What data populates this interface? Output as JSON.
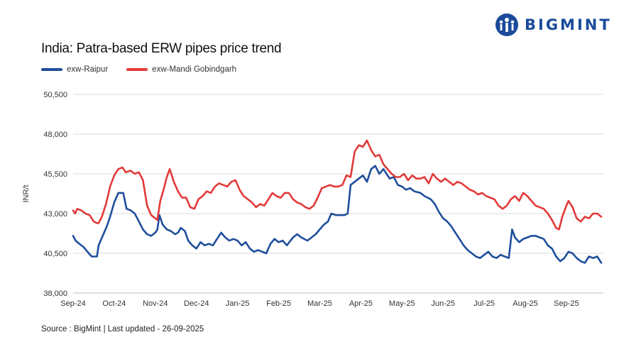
{
  "brand": {
    "name": "BIGMINT",
    "color": "#1b4b9a"
  },
  "chart_data": {
    "type": "line",
    "title": "India: Patra-based ERW pipes price trend",
    "ylabel": "INR/t",
    "xlabel": "",
    "ylim": [
      38000,
      50500
    ],
    "yticks": [
      38000,
      40500,
      43000,
      45500,
      48000,
      50500
    ],
    "ytick_labels": [
      "38,000",
      "40,500",
      "43,000",
      "45,500",
      "48,000",
      "50,500"
    ],
    "xlim": [
      0,
      12.9
    ],
    "xticks": [
      0,
      1,
      2,
      3,
      4,
      5,
      6,
      7,
      8,
      9,
      10,
      11,
      12
    ],
    "xtick_labels": [
      "Sep-24",
      "Oct-24",
      "Nov-24",
      "Dec-24",
      "Jan-25",
      "Feb-25",
      "Mar-25",
      "Apr-25",
      "May-25",
      "Jun-25",
      "Jul-25",
      "Aug-25",
      "Sep-25"
    ],
    "grid": "horizontal",
    "legend_position": "top-left",
    "series": [
      {
        "name": "exw-Raipur",
        "color": "#1f4e9c",
        "points": [
          [
            0,
            41600
          ],
          [
            0.06,
            41300
          ],
          [
            0.15,
            41100
          ],
          [
            0.25,
            40900
          ],
          [
            0.35,
            40600
          ],
          [
            0.45,
            40300
          ],
          [
            0.58,
            40300
          ],
          [
            0.62,
            41000
          ],
          [
            0.72,
            41600
          ],
          [
            0.82,
            42200
          ],
          [
            0.9,
            42800
          ],
          [
            1.0,
            43700
          ],
          [
            1.1,
            44300
          ],
          [
            1.22,
            44300
          ],
          [
            1.3,
            43300
          ],
          [
            1.4,
            43200
          ],
          [
            1.5,
            43000
          ],
          [
            1.6,
            42500
          ],
          [
            1.7,
            42000
          ],
          [
            1.8,
            41700
          ],
          [
            1.9,
            41600
          ],
          [
            2.0,
            41800
          ],
          [
            2.05,
            42000
          ],
          [
            2.1,
            42900
          ],
          [
            2.18,
            42300
          ],
          [
            2.28,
            42000
          ],
          [
            2.38,
            41900
          ],
          [
            2.48,
            41700
          ],
          [
            2.55,
            41800
          ],
          [
            2.62,
            42100
          ],
          [
            2.72,
            41900
          ],
          [
            2.8,
            41300
          ],
          [
            2.9,
            41000
          ],
          [
            3.0,
            40800
          ],
          [
            3.1,
            41200
          ],
          [
            3.2,
            41000
          ],
          [
            3.3,
            41100
          ],
          [
            3.4,
            41000
          ],
          [
            3.5,
            41400
          ],
          [
            3.6,
            41800
          ],
          [
            3.7,
            41500
          ],
          [
            3.8,
            41300
          ],
          [
            3.9,
            41400
          ],
          [
            4.0,
            41300
          ],
          [
            4.1,
            41000
          ],
          [
            4.2,
            41200
          ],
          [
            4.3,
            40800
          ],
          [
            4.4,
            40600
          ],
          [
            4.5,
            40700
          ],
          [
            4.6,
            40600
          ],
          [
            4.7,
            40500
          ],
          [
            4.8,
            41100
          ],
          [
            4.9,
            41400
          ],
          [
            5.0,
            41200
          ],
          [
            5.1,
            41300
          ],
          [
            5.2,
            41000
          ],
          [
            5.35,
            41500
          ],
          [
            5.45,
            41700
          ],
          [
            5.55,
            41500
          ],
          [
            5.7,
            41300
          ],
          [
            5.8,
            41500
          ],
          [
            5.9,
            41700
          ],
          [
            6.0,
            42000
          ],
          [
            6.1,
            42300
          ],
          [
            6.2,
            42500
          ],
          [
            6.28,
            43000
          ],
          [
            6.4,
            42900
          ],
          [
            6.5,
            42900
          ],
          [
            6.6,
            42900
          ],
          [
            6.68,
            43000
          ],
          [
            6.75,
            44800
          ],
          [
            6.85,
            45000
          ],
          [
            6.95,
            45200
          ],
          [
            7.05,
            45400
          ],
          [
            7.15,
            45000
          ],
          [
            7.25,
            45800
          ],
          [
            7.35,
            46000
          ],
          [
            7.45,
            45500
          ],
          [
            7.55,
            45800
          ],
          [
            7.6,
            45600
          ],
          [
            7.7,
            45200
          ],
          [
            7.8,
            45300
          ],
          [
            7.9,
            44800
          ],
          [
            8.0,
            44700
          ],
          [
            8.1,
            44500
          ],
          [
            8.2,
            44600
          ],
          [
            8.3,
            44400
          ],
          [
            8.45,
            44300
          ],
          [
            8.55,
            44100
          ],
          [
            8.7,
            43900
          ],
          [
            8.8,
            43600
          ],
          [
            8.9,
            43100
          ],
          [
            9.0,
            42700
          ],
          [
            9.1,
            42500
          ],
          [
            9.2,
            42200
          ],
          [
            9.3,
            41800
          ],
          [
            9.4,
            41400
          ],
          [
            9.5,
            41000
          ],
          [
            9.6,
            40700
          ],
          [
            9.7,
            40500
          ],
          [
            9.8,
            40300
          ],
          [
            9.9,
            40200
          ],
          [
            10.0,
            40400
          ],
          [
            10.1,
            40600
          ],
          [
            10.2,
            40300
          ],
          [
            10.3,
            40200
          ],
          [
            10.4,
            40400
          ],
          [
            10.5,
            40300
          ],
          [
            10.6,
            40200
          ],
          [
            10.68,
            42000
          ],
          [
            10.75,
            41500
          ],
          [
            10.85,
            41200
          ],
          [
            10.95,
            41400
          ],
          [
            11.05,
            41500
          ],
          [
            11.15,
            41600
          ],
          [
            11.25,
            41600
          ],
          [
            11.35,
            41500
          ],
          [
            11.45,
            41400
          ],
          [
            11.55,
            41000
          ],
          [
            11.65,
            40800
          ],
          [
            11.75,
            40300
          ],
          [
            11.85,
            40000
          ],
          [
            11.95,
            40200
          ],
          [
            12.05,
            40600
          ],
          [
            12.15,
            40500
          ],
          [
            12.25,
            40200
          ],
          [
            12.35,
            40000
          ],
          [
            12.45,
            39900
          ],
          [
            12.55,
            40300
          ],
          [
            12.65,
            40200
          ],
          [
            12.75,
            40300
          ],
          [
            12.85,
            39900
          ]
        ]
      },
      {
        "name": "exw-Mandi Gobindgarh",
        "color": "#e23a3a",
        "points": [
          [
            0,
            43200
          ],
          [
            0.05,
            43000
          ],
          [
            0.1,
            43300
          ],
          [
            0.2,
            43200
          ],
          [
            0.3,
            43000
          ],
          [
            0.4,
            42900
          ],
          [
            0.5,
            42500
          ],
          [
            0.58,
            42400
          ],
          [
            0.62,
            42400
          ],
          [
            0.7,
            42800
          ],
          [
            0.8,
            43600
          ],
          [
            0.9,
            44700
          ],
          [
            1.0,
            45400
          ],
          [
            1.1,
            45800
          ],
          [
            1.2,
            45900
          ],
          [
            1.28,
            45600
          ],
          [
            1.4,
            45700
          ],
          [
            1.5,
            45500
          ],
          [
            1.6,
            45600
          ],
          [
            1.7,
            45100
          ],
          [
            1.8,
            43500
          ],
          [
            1.9,
            42900
          ],
          [
            2.0,
            42700
          ],
          [
            2.05,
            42600
          ],
          [
            2.12,
            43800
          ],
          [
            2.2,
            44500
          ],
          [
            2.28,
            45300
          ],
          [
            2.35,
            45800
          ],
          [
            2.45,
            45000
          ],
          [
            2.55,
            44400
          ],
          [
            2.65,
            44000
          ],
          [
            2.75,
            44000
          ],
          [
            2.85,
            43400
          ],
          [
            2.95,
            43300
          ],
          [
            3.05,
            43900
          ],
          [
            3.15,
            44100
          ],
          [
            3.25,
            44400
          ],
          [
            3.35,
            44300
          ],
          [
            3.45,
            44700
          ],
          [
            3.55,
            44900
          ],
          [
            3.65,
            44800
          ],
          [
            3.75,
            44700
          ],
          [
            3.85,
            45000
          ],
          [
            3.95,
            45100
          ],
          [
            4.05,
            44500
          ],
          [
            4.15,
            44100
          ],
          [
            4.25,
            43900
          ],
          [
            4.35,
            43700
          ],
          [
            4.45,
            43400
          ],
          [
            4.55,
            43600
          ],
          [
            4.65,
            43500
          ],
          [
            4.75,
            43900
          ],
          [
            4.85,
            44300
          ],
          [
            4.95,
            44100
          ],
          [
            5.05,
            44000
          ],
          [
            5.15,
            44300
          ],
          [
            5.25,
            44300
          ],
          [
            5.35,
            43900
          ],
          [
            5.45,
            43700
          ],
          [
            5.55,
            43600
          ],
          [
            5.65,
            43400
          ],
          [
            5.75,
            43300
          ],
          [
            5.85,
            43500
          ],
          [
            5.95,
            44000
          ],
          [
            6.05,
            44600
          ],
          [
            6.15,
            44700
          ],
          [
            6.25,
            44800
          ],
          [
            6.35,
            44700
          ],
          [
            6.45,
            44700
          ],
          [
            6.55,
            44800
          ],
          [
            6.65,
            45400
          ],
          [
            6.75,
            45300
          ],
          [
            6.85,
            46900
          ],
          [
            6.95,
            47300
          ],
          [
            7.05,
            47200
          ],
          [
            7.15,
            47600
          ],
          [
            7.25,
            47000
          ],
          [
            7.35,
            46600
          ],
          [
            7.45,
            46700
          ],
          [
            7.55,
            46100
          ],
          [
            7.65,
            45800
          ],
          [
            7.75,
            45500
          ],
          [
            7.85,
            45300
          ],
          [
            7.95,
            45300
          ],
          [
            8.05,
            45500
          ],
          [
            8.15,
            45100
          ],
          [
            8.25,
            45400
          ],
          [
            8.35,
            45200
          ],
          [
            8.45,
            45200
          ],
          [
            8.55,
            45300
          ],
          [
            8.65,
            44900
          ],
          [
            8.75,
            45500
          ],
          [
            8.85,
            45200
          ],
          [
            8.95,
            45000
          ],
          [
            9.05,
            45200
          ],
          [
            9.15,
            45000
          ],
          [
            9.25,
            44800
          ],
          [
            9.35,
            45000
          ],
          [
            9.45,
            44900
          ],
          [
            9.55,
            44700
          ],
          [
            9.65,
            44500
          ],
          [
            9.75,
            44400
          ],
          [
            9.85,
            44200
          ],
          [
            9.95,
            44300
          ],
          [
            10.05,
            44100
          ],
          [
            10.15,
            44000
          ],
          [
            10.25,
            43900
          ],
          [
            10.35,
            43500
          ],
          [
            10.45,
            43300
          ],
          [
            10.55,
            43500
          ],
          [
            10.65,
            43900
          ],
          [
            10.75,
            44100
          ],
          [
            10.85,
            43800
          ],
          [
            10.95,
            44300
          ],
          [
            11.05,
            44100
          ],
          [
            11.15,
            43800
          ],
          [
            11.25,
            43500
          ],
          [
            11.35,
            43400
          ],
          [
            11.45,
            43300
          ],
          [
            11.55,
            43000
          ],
          [
            11.65,
            42600
          ],
          [
            11.75,
            42100
          ],
          [
            11.82,
            42000
          ],
          [
            11.9,
            42800
          ],
          [
            12.0,
            43500
          ],
          [
            12.05,
            43800
          ],
          [
            12.15,
            43400
          ],
          [
            12.25,
            42700
          ],
          [
            12.35,
            42500
          ],
          [
            12.45,
            42800
          ],
          [
            12.55,
            42700
          ],
          [
            12.65,
            43000
          ],
          [
            12.75,
            43000
          ],
          [
            12.85,
            42800
          ]
        ]
      }
    ]
  },
  "source": "Source : BigMint | Last updated - 26-09-2025"
}
